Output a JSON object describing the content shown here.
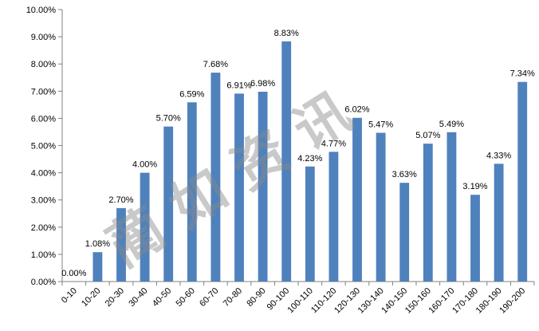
{
  "chart_data": {
    "type": "bar",
    "title": "",
    "xlabel": "",
    "ylabel": "",
    "categories": [
      "0-10",
      "10-20",
      "20-30",
      "30-40",
      "40-50",
      "50-60",
      "60-70",
      "70-80",
      "80-90",
      "90-100",
      "100-110",
      "110-120",
      "120-130",
      "130-140",
      "140-150",
      "150-160",
      "160-170",
      "170-180",
      "180-190",
      "190-200"
    ],
    "series": [
      {
        "values": [
          0.0,
          1.08,
          2.7,
          4.0,
          5.7,
          6.59,
          7.68,
          6.91,
          6.98,
          8.83,
          4.23,
          4.77,
          6.02,
          5.47,
          3.63,
          5.07,
          5.49,
          3.19,
          4.33,
          7.34
        ],
        "labels": [
          "0.00%",
          "1.08%",
          "2.70%",
          "4.00%",
          "5.70%",
          "6.59%",
          "7.68%",
          "6.91%",
          "6.98%",
          "8.83%",
          "4.23%",
          "4.77%",
          "6.02%",
          "5.47%",
          "3.63%",
          "5.07%",
          "5.49%",
          "3.19%",
          "4.33%",
          "7.34%"
        ]
      }
    ],
    "ylim": [
      0,
      10
    ],
    "y_ticks": [
      0,
      1,
      2,
      3,
      4,
      5,
      6,
      7,
      8,
      9,
      10
    ],
    "y_tick_labels": [
      "0.00%",
      "1.00%",
      "2.00%",
      "3.00%",
      "4.00%",
      "5.00%",
      "6.00%",
      "7.00%",
      "8.00%",
      "9.00%",
      "10.00%"
    ],
    "grid": false,
    "legend": "none",
    "bar_color": "#4f81bd"
  },
  "watermark": {
    "text": "蔺 如 资 讯"
  }
}
